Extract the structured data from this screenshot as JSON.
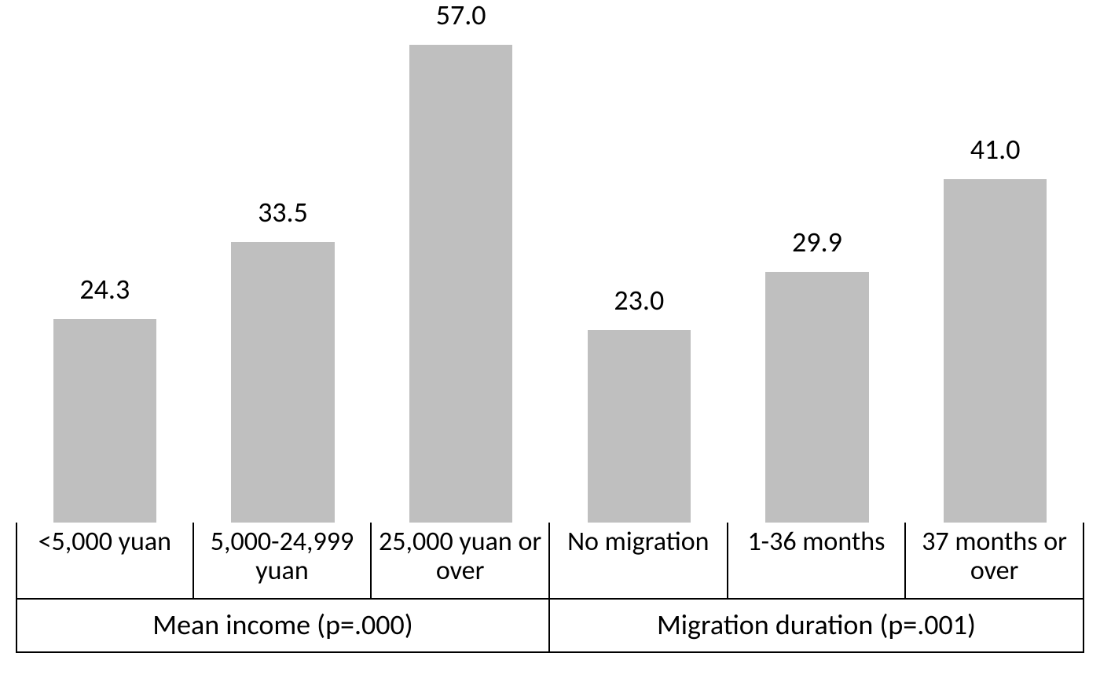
{
  "chart": {
    "type": "bar",
    "background_color": "#ffffff",
    "bar_color": "#bfbfbf",
    "axis_border_color": "#000000",
    "axis_border_width": 2,
    "ymax": 60,
    "value_label_fontsize": 36,
    "category_label_fontsize": 34,
    "group_label_fontsize": 36,
    "text_color": "#000000",
    "bar_width_ratio": 0.58,
    "groups": [
      {
        "label": "Mean income (p=.000)",
        "bars": [
          {
            "category": "<5,000 yuan",
            "value": 24.3,
            "value_label": "24.3"
          },
          {
            "category": "5,000-24,999 yuan",
            "value": 33.5,
            "value_label": "33.5"
          },
          {
            "category": "25,000 yuan or over",
            "value": 57.0,
            "value_label": "57.0"
          }
        ]
      },
      {
        "label": "Migration duration (p=.001)",
        "bars": [
          {
            "category": "No migration",
            "value": 23.0,
            "value_label": "23.0"
          },
          {
            "category": "1-36 months",
            "value": 29.9,
            "value_label": "29.9"
          },
          {
            "category": "37 months or over",
            "value": 41.0,
            "value_label": "41.0"
          }
        ]
      }
    ]
  }
}
